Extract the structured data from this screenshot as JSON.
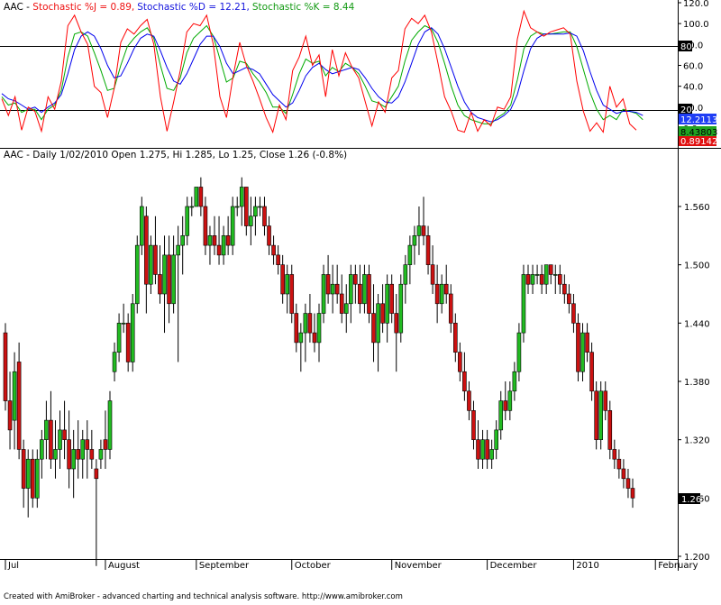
{
  "colors": {
    "up": "#22bb22",
    "down": "#cc1111",
    "wick": "#000000",
    "j_line": "#ff0000",
    "d_line": "#0000ee",
    "k_line": "#00aa00",
    "level_line": "#000000",
    "background": "#ffffff",
    "value_badge_d": "#1f3ef5",
    "value_badge_k": "#22a422",
    "value_badge_j": "#e01010"
  },
  "indicator_header": {
    "prefix": "AAC - ",
    "j_label": "Stochastic %J = 0.89,",
    "d_label": "Stochastic %D = 12.21,",
    "k_label": "Stochastic %K = 8.44"
  },
  "price_header": "AAC - Daily 1/02/2010 Open 1.275, Hi 1.285, Lo 1.25, Close 1.26 (-0.8%)",
  "footer_text": "Created with AmiBroker - advanced charting and technical analysis software. http://www.amibroker.com",
  "indicator_level_labels": [
    "80",
    "20"
  ],
  "indicator_value_badges": [
    "12.2113",
    "8.43803",
    "0.891426"
  ],
  "price_badge": "1.26",
  "chart_data": [
    {
      "type": "line",
      "title": "Stochastic",
      "ylim": [
        -10,
        120
      ],
      "yticks": [
        "120.0",
        "100.0",
        "80.0",
        "60.0",
        "40.0",
        "20.0",
        "0.0"
      ],
      "levels": [
        80,
        20
      ],
      "series": [
        {
          "name": "Stochastic %J",
          "values": [
            28,
            12,
            30,
            -2,
            20,
            16,
            -3,
            30,
            18,
            45,
            98,
            108,
            92,
            80,
            40,
            34,
            10,
            38,
            82,
            95,
            90,
            98,
            104,
            80,
            30,
            -3,
            25,
            55,
            92,
            100,
            98,
            108,
            80,
            30,
            10,
            50,
            82,
            60,
            45,
            28,
            10,
            -4,
            22,
            8,
            55,
            68,
            88,
            60,
            70,
            30,
            75,
            50,
            72,
            58,
            48,
            25,
            2,
            25,
            15,
            48,
            55,
            95,
            105,
            100,
            108,
            92,
            62,
            30,
            16,
            -2,
            -4,
            15,
            -3,
            8,
            2,
            20,
            18,
            30,
            85,
            112,
            96,
            92,
            88,
            92,
            94,
            96,
            90,
            45,
            16,
            -3,
            5,
            -5,
            40,
            20,
            28,
            4,
            -2
          ]
        },
        {
          "name": "Stochastic %D",
          "values": [
            33,
            28,
            26,
            22,
            18,
            20,
            15,
            20,
            24,
            32,
            52,
            75,
            88,
            92,
            88,
            76,
            60,
            48,
            50,
            62,
            76,
            86,
            90,
            88,
            74,
            58,
            45,
            42,
            52,
            66,
            80,
            88,
            88,
            78,
            62,
            52,
            55,
            58,
            56,
            52,
            42,
            32,
            26,
            20,
            24,
            36,
            50,
            58,
            62,
            56,
            52,
            54,
            56,
            58,
            56,
            48,
            38,
            30,
            25,
            24,
            30,
            44,
            62,
            80,
            92,
            96,
            90,
            76,
            58,
            40,
            25,
            15,
            10,
            8,
            6,
            8,
            12,
            18,
            32,
            55,
            76,
            86,
            90,
            90,
            90,
            90,
            91,
            88,
            74,
            54,
            36,
            22,
            18,
            14,
            16,
            16,
            15,
            12
          ]
        },
        {
          "name": "Stochastic %K",
          "values": [
            30,
            22,
            24,
            15,
            18,
            18,
            8,
            18,
            22,
            36,
            68,
            90,
            92,
            88,
            72,
            55,
            36,
            38,
            60,
            78,
            86,
            92,
            96,
            86,
            60,
            38,
            36,
            48,
            72,
            86,
            92,
            98,
            88,
            66,
            44,
            48,
            64,
            62,
            52,
            44,
            34,
            20,
            20,
            14,
            32,
            52,
            66,
            62,
            64,
            50,
            58,
            54,
            62,
            58,
            52,
            40,
            26,
            24,
            20,
            30,
            40,
            64,
            84,
            92,
            98,
            95,
            82,
            62,
            40,
            22,
            12,
            8,
            6,
            4,
            4,
            10,
            14,
            22,
            46,
            76,
            88,
            92,
            90,
            90,
            91,
            92,
            92,
            78,
            56,
            34,
            18,
            8,
            12,
            8,
            18,
            16,
            14,
            8
          ]
        }
      ]
    },
    {
      "type": "candlestick",
      "title": "AAC - Daily",
      "ylim": [
        1.18,
        1.6
      ],
      "yticks": [
        "1.560",
        "1.500",
        "1.440",
        "1.380",
        "1.320",
        "1.260",
        "1.200"
      ],
      "xlabels": [
        "Jul",
        "August",
        "September",
        "October",
        "November",
        "December",
        "2010",
        "February"
      ],
      "xlabel_index": [
        0,
        22,
        42,
        63,
        85,
        106,
        125,
        143
      ],
      "ohlc": [
        [
          1.43,
          1.44,
          1.35,
          1.36
        ],
        [
          1.36,
          1.39,
          1.31,
          1.33
        ],
        [
          1.34,
          1.41,
          1.31,
          1.39
        ],
        [
          1.4,
          1.42,
          1.3,
          1.31
        ],
        [
          1.31,
          1.32,
          1.25,
          1.27
        ],
        [
          1.27,
          1.31,
          1.24,
          1.3
        ],
        [
          1.3,
          1.31,
          1.25,
          1.26
        ],
        [
          1.26,
          1.31,
          1.25,
          1.3
        ],
        [
          1.3,
          1.33,
          1.28,
          1.32
        ],
        [
          1.32,
          1.36,
          1.3,
          1.34
        ],
        [
          1.34,
          1.37,
          1.29,
          1.3
        ],
        [
          1.3,
          1.34,
          1.28,
          1.31
        ],
        [
          1.31,
          1.35,
          1.29,
          1.33
        ],
        [
          1.33,
          1.36,
          1.3,
          1.32
        ],
        [
          1.32,
          1.35,
          1.27,
          1.29
        ],
        [
          1.29,
          1.33,
          1.26,
          1.31
        ],
        [
          1.31,
          1.34,
          1.28,
          1.3
        ],
        [
          1.3,
          1.33,
          1.28,
          1.32
        ],
        [
          1.32,
          1.34,
          1.28,
          1.31
        ],
        [
          1.31,
          1.33,
          1.29,
          1.3
        ],
        [
          1.29,
          1.3,
          1.19,
          1.28
        ],
        [
          1.3,
          1.32,
          1.29,
          1.31
        ],
        [
          1.32,
          1.35,
          1.29,
          1.31
        ],
        [
          1.31,
          1.37,
          1.3,
          1.36
        ],
        [
          1.39,
          1.42,
          1.38,
          1.41
        ],
        [
          1.41,
          1.45,
          1.4,
          1.44
        ],
        [
          1.44,
          1.46,
          1.43,
          1.44
        ],
        [
          1.44,
          1.45,
          1.39,
          1.4
        ],
        [
          1.4,
          1.47,
          1.39,
          1.46
        ],
        [
          1.46,
          1.53,
          1.45,
          1.52
        ],
        [
          1.52,
          1.57,
          1.51,
          1.56
        ],
        [
          1.55,
          1.56,
          1.45,
          1.48
        ],
        [
          1.48,
          1.53,
          1.47,
          1.52
        ],
        [
          1.52,
          1.55,
          1.48,
          1.49
        ],
        [
          1.49,
          1.52,
          1.46,
          1.47
        ],
        [
          1.47,
          1.53,
          1.43,
          1.51
        ],
        [
          1.51,
          1.53,
          1.44,
          1.46
        ],
        [
          1.46,
          1.53,
          1.45,
          1.51
        ],
        [
          1.51,
          1.54,
          1.4,
          1.52
        ],
        [
          1.52,
          1.55,
          1.49,
          1.53
        ],
        [
          1.53,
          1.57,
          1.52,
          1.56
        ],
        [
          1.56,
          1.57,
          1.55,
          1.56
        ],
        [
          1.56,
          1.58,
          1.56,
          1.58
        ],
        [
          1.58,
          1.59,
          1.55,
          1.56
        ],
        [
          1.56,
          1.57,
          1.51,
          1.52
        ],
        [
          1.52,
          1.54,
          1.5,
          1.53
        ],
        [
          1.53,
          1.55,
          1.51,
          1.52
        ],
        [
          1.52,
          1.55,
          1.5,
          1.51
        ],
        [
          1.51,
          1.54,
          1.5,
          1.53
        ],
        [
          1.53,
          1.55,
          1.51,
          1.52
        ],
        [
          1.52,
          1.57,
          1.51,
          1.56
        ],
        [
          1.56,
          1.57,
          1.55,
          1.56
        ],
        [
          1.56,
          1.59,
          1.54,
          1.58
        ],
        [
          1.58,
          1.58,
          1.53,
          1.54
        ],
        [
          1.54,
          1.57,
          1.52,
          1.55
        ],
        [
          1.55,
          1.57,
          1.53,
          1.56
        ],
        [
          1.56,
          1.57,
          1.55,
          1.56
        ],
        [
          1.56,
          1.57,
          1.53,
          1.54
        ],
        [
          1.54,
          1.55,
          1.51,
          1.52
        ],
        [
          1.52,
          1.53,
          1.5,
          1.51
        ],
        [
          1.51,
          1.52,
          1.49,
          1.5
        ],
        [
          1.5,
          1.51,
          1.46,
          1.47
        ],
        [
          1.47,
          1.5,
          1.45,
          1.49
        ],
        [
          1.49,
          1.5,
          1.44,
          1.45
        ],
        [
          1.45,
          1.46,
          1.41,
          1.42
        ],
        [
          1.42,
          1.44,
          1.39,
          1.43
        ],
        [
          1.43,
          1.46,
          1.4,
          1.45
        ],
        [
          1.45,
          1.47,
          1.42,
          1.43
        ],
        [
          1.43,
          1.45,
          1.41,
          1.42
        ],
        [
          1.42,
          1.46,
          1.4,
          1.45
        ],
        [
          1.45,
          1.5,
          1.44,
          1.49
        ],
        [
          1.49,
          1.51,
          1.46,
          1.47
        ],
        [
          1.47,
          1.5,
          1.45,
          1.48
        ],
        [
          1.48,
          1.5,
          1.46,
          1.47
        ],
        [
          1.47,
          1.49,
          1.44,
          1.45
        ],
        [
          1.45,
          1.48,
          1.43,
          1.46
        ],
        [
          1.46,
          1.5,
          1.44,
          1.49
        ],
        [
          1.49,
          1.5,
          1.46,
          1.48
        ],
        [
          1.48,
          1.5,
          1.45,
          1.46
        ],
        [
          1.46,
          1.5,
          1.45,
          1.49
        ],
        [
          1.49,
          1.5,
          1.44,
          1.45
        ],
        [
          1.45,
          1.48,
          1.4,
          1.42
        ],
        [
          1.42,
          1.47,
          1.39,
          1.46
        ],
        [
          1.46,
          1.48,
          1.43,
          1.44
        ],
        [
          1.44,
          1.49,
          1.42,
          1.48
        ],
        [
          1.48,
          1.49,
          1.44,
          1.45
        ],
        [
          1.45,
          1.47,
          1.39,
          1.43
        ],
        [
          1.43,
          1.49,
          1.42,
          1.48
        ],
        [
          1.48,
          1.51,
          1.46,
          1.5
        ],
        [
          1.5,
          1.53,
          1.48,
          1.52
        ],
        [
          1.52,
          1.54,
          1.5,
          1.53
        ],
        [
          1.53,
          1.56,
          1.51,
          1.54
        ],
        [
          1.54,
          1.57,
          1.52,
          1.53
        ],
        [
          1.53,
          1.54,
          1.49,
          1.5
        ],
        [
          1.5,
          1.52,
          1.47,
          1.48
        ],
        [
          1.48,
          1.5,
          1.44,
          1.46
        ],
        [
          1.46,
          1.49,
          1.45,
          1.48
        ],
        [
          1.48,
          1.5,
          1.46,
          1.47
        ],
        [
          1.47,
          1.48,
          1.43,
          1.44
        ],
        [
          1.44,
          1.45,
          1.4,
          1.41
        ],
        [
          1.41,
          1.42,
          1.38,
          1.39
        ],
        [
          1.39,
          1.41,
          1.36,
          1.37
        ],
        [
          1.37,
          1.38,
          1.34,
          1.35
        ],
        [
          1.35,
          1.36,
          1.31,
          1.32
        ],
        [
          1.32,
          1.34,
          1.29,
          1.3
        ],
        [
          1.3,
          1.33,
          1.29,
          1.32
        ],
        [
          1.32,
          1.33,
          1.29,
          1.3
        ],
        [
          1.3,
          1.32,
          1.29,
          1.31
        ],
        [
          1.31,
          1.34,
          1.3,
          1.33
        ],
        [
          1.33,
          1.37,
          1.32,
          1.36
        ],
        [
          1.36,
          1.38,
          1.34,
          1.35
        ],
        [
          1.35,
          1.38,
          1.34,
          1.37
        ],
        [
          1.37,
          1.4,
          1.36,
          1.39
        ],
        [
          1.39,
          1.44,
          1.38,
          1.43
        ],
        [
          1.43,
          1.5,
          1.42,
          1.49
        ],
        [
          1.49,
          1.5,
          1.47,
          1.48
        ],
        [
          1.48,
          1.5,
          1.47,
          1.49
        ],
        [
          1.49,
          1.5,
          1.48,
          1.49
        ],
        [
          1.49,
          1.5,
          1.47,
          1.48
        ],
        [
          1.48,
          1.5,
          1.47,
          1.5
        ],
        [
          1.5,
          1.5,
          1.48,
          1.49
        ],
        [
          1.49,
          1.5,
          1.47,
          1.49
        ],
        [
          1.49,
          1.5,
          1.47,
          1.48
        ],
        [
          1.48,
          1.49,
          1.46,
          1.47
        ],
        [
          1.47,
          1.48,
          1.45,
          1.46
        ],
        [
          1.46,
          1.47,
          1.43,
          1.44
        ],
        [
          1.44,
          1.45,
          1.38,
          1.39
        ],
        [
          1.39,
          1.44,
          1.38,
          1.43
        ],
        [
          1.43,
          1.44,
          1.4,
          1.41
        ],
        [
          1.41,
          1.42,
          1.36,
          1.37
        ],
        [
          1.37,
          1.38,
          1.31,
          1.32
        ],
        [
          1.32,
          1.38,
          1.31,
          1.37
        ],
        [
          1.37,
          1.38,
          1.34,
          1.35
        ],
        [
          1.35,
          1.36,
          1.3,
          1.31
        ],
        [
          1.31,
          1.32,
          1.29,
          1.3
        ],
        [
          1.3,
          1.31,
          1.28,
          1.29
        ],
        [
          1.29,
          1.3,
          1.27,
          1.28
        ],
        [
          1.28,
          1.29,
          1.26,
          1.27
        ],
        [
          1.27,
          1.28,
          1.25,
          1.26
        ]
      ]
    }
  ]
}
